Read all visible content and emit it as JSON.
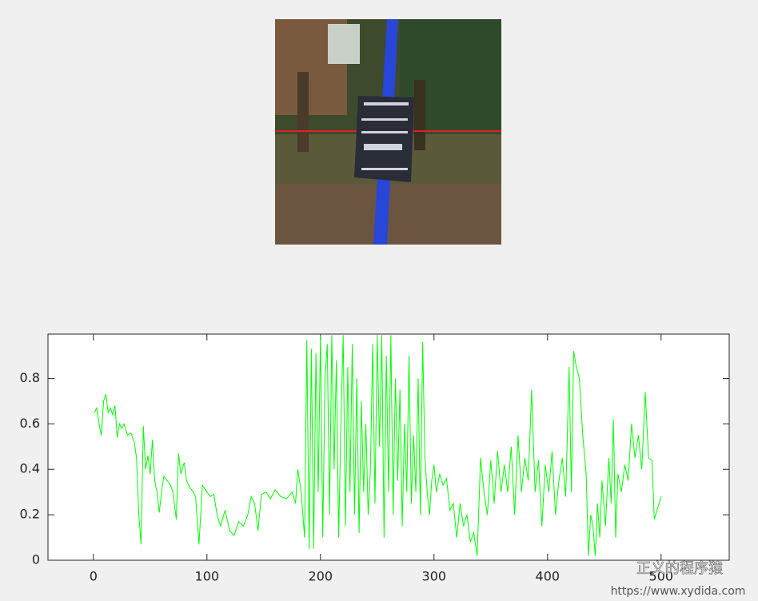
{
  "chart_data": {
    "type": "line",
    "x": [
      1,
      3,
      5,
      7,
      9,
      11,
      13,
      15,
      17,
      19,
      21,
      23,
      25,
      27,
      30,
      33,
      36,
      38,
      40,
      42,
      44,
      46,
      48,
      50,
      52,
      54,
      56,
      58,
      60,
      62,
      65,
      68,
      70,
      73,
      75,
      77,
      80,
      82,
      85,
      88,
      90,
      93,
      96,
      100,
      103,
      106,
      109,
      112,
      116,
      120,
      124,
      128,
      132,
      136,
      139,
      142,
      145,
      148,
      152,
      156,
      160,
      165,
      170,
      175,
      178,
      180,
      183,
      186,
      188,
      190,
      192,
      194,
      196,
      198,
      200,
      202,
      204,
      206,
      208,
      210,
      212,
      214,
      216,
      218,
      220,
      222,
      224,
      226,
      228,
      230,
      232,
      234,
      236,
      238,
      240,
      242,
      244,
      246,
      248,
      250,
      252,
      254,
      256,
      258,
      260,
      262,
      264,
      266,
      268,
      270,
      272,
      274,
      276,
      278,
      280,
      282,
      284,
      286,
      288,
      290,
      292,
      294,
      296,
      298,
      300,
      302,
      305,
      308,
      311,
      314,
      317,
      320,
      323,
      326,
      329,
      332,
      335,
      338,
      341,
      344,
      347,
      350,
      353,
      356,
      359,
      362,
      365,
      368,
      371,
      374,
      377,
      380,
      383,
      386,
      389,
      392,
      395,
      398,
      401,
      404,
      407,
      410,
      413,
      416,
      419,
      421,
      423,
      425,
      428,
      431,
      434,
      436,
      438,
      440,
      442,
      444,
      446,
      448,
      451,
      454,
      456,
      458,
      460,
      462,
      465,
      468,
      471,
      474,
      477,
      480,
      483,
      486,
      489,
      492,
      494,
      500
    ],
    "series": [
      {
        "color": "#00ff00",
        "values": [
          0.65,
          0.67,
          0.6,
          0.55,
          0.7,
          0.73,
          0.65,
          0.67,
          0.64,
          0.68,
          0.54,
          0.6,
          0.58,
          0.6,
          0.55,
          0.56,
          0.52,
          0.45,
          0.2,
          0.07,
          0.59,
          0.4,
          0.46,
          0.38,
          0.53,
          0.35,
          0.3,
          0.21,
          0.3,
          0.37,
          0.35,
          0.33,
          0.3,
          0.18,
          0.47,
          0.38,
          0.43,
          0.35,
          0.32,
          0.3,
          0.28,
          0.07,
          0.33,
          0.3,
          0.28,
          0.29,
          0.2,
          0.15,
          0.22,
          0.13,
          0.11,
          0.17,
          0.15,
          0.2,
          0.28,
          0.25,
          0.13,
          0.29,
          0.3,
          0.27,
          0.31,
          0.28,
          0.27,
          0.3,
          0.25,
          0.4,
          0.3,
          0.1,
          0.97,
          0.05,
          0.93,
          0.05,
          0.91,
          0.3,
          0.99,
          0.1,
          0.8,
          0.95,
          0.2,
          0.99,
          0.4,
          0.88,
          0.1,
          0.6,
          0.99,
          0.15,
          0.85,
          0.3,
          0.95,
          0.2,
          0.8,
          0.12,
          0.7,
          0.3,
          0.6,
          0.2,
          0.4,
          0.95,
          0.25,
          0.99,
          0.5,
          0.99,
          0.1,
          0.9,
          0.3,
          0.99,
          0.2,
          0.8,
          0.35,
          0.75,
          0.15,
          0.6,
          0.3,
          0.9,
          0.25,
          0.55,
          0.3,
          0.8,
          0.2,
          0.96,
          0.45,
          0.3,
          0.2,
          0.35,
          0.42,
          0.3,
          0.38,
          0.33,
          0.36,
          0.22,
          0.25,
          0.1,
          0.25,
          0.15,
          0.2,
          0.08,
          0.12,
          0.02,
          0.45,
          0.3,
          0.2,
          0.44,
          0.25,
          0.48,
          0.3,
          0.42,
          0.3,
          0.5,
          0.2,
          0.55,
          0.3,
          0.45,
          0.35,
          0.75,
          0.3,
          0.44,
          0.15,
          0.42,
          0.3,
          0.48,
          0.2,
          0.35,
          0.45,
          0.28,
          0.85,
          0.3,
          0.92,
          0.86,
          0.8,
          0.55,
          0.38,
          0.02,
          0.2,
          0.15,
          0.02,
          0.25,
          0.1,
          0.35,
          0.15,
          0.45,
          0.25,
          0.62,
          0.1,
          0.38,
          0.3,
          0.42,
          0.35,
          0.6,
          0.45,
          0.55,
          0.4,
          0.74,
          0.45,
          0.44,
          0.18,
          0.28
        ]
      }
    ],
    "xlim": [
      -40,
      560
    ],
    "ylim": [
      0,
      0.995
    ],
    "xticks": [
      0,
      100,
      200,
      300,
      400,
      500
    ],
    "yticks": [
      0,
      0.2,
      0.4,
      0.6,
      0.8
    ]
  },
  "watermark": {
    "name": "正义的程序猿",
    "url": "https://www.xydida.com"
  }
}
